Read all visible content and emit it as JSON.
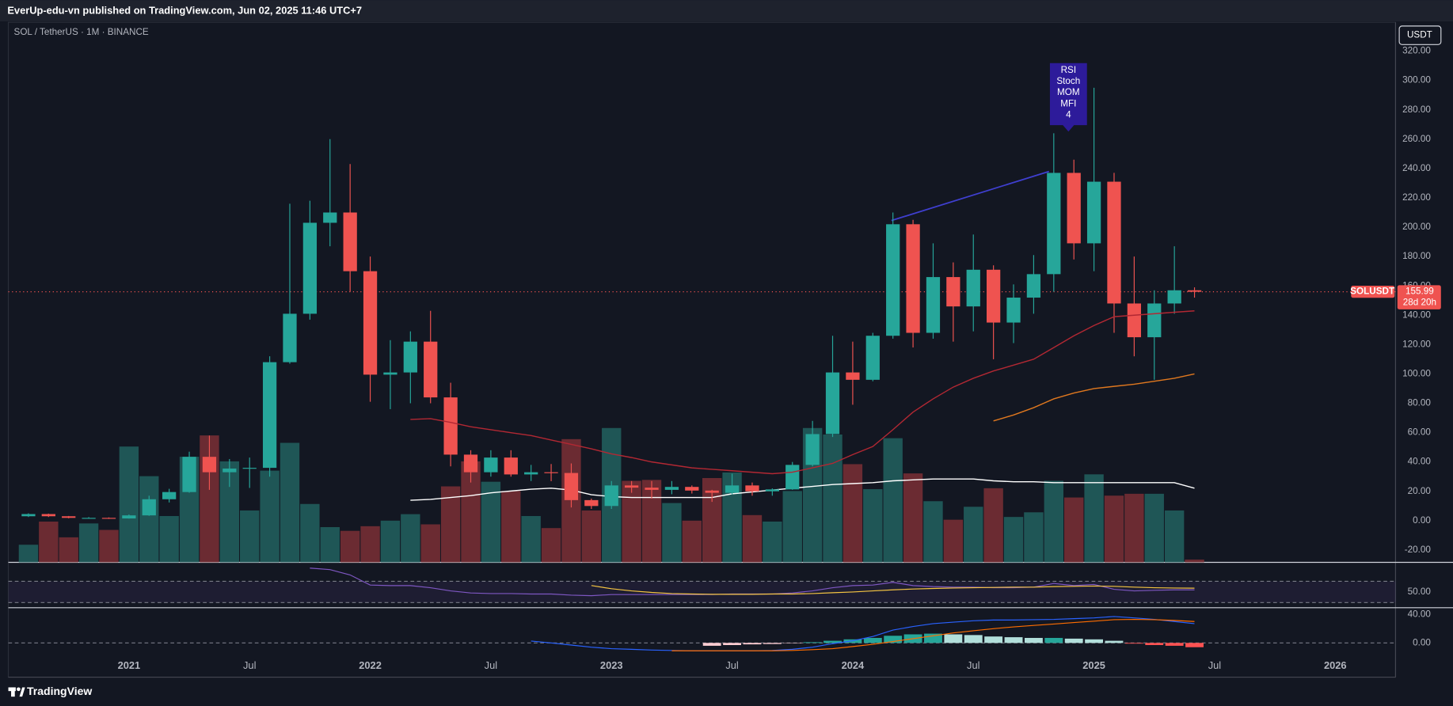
{
  "header": {
    "publisher": "EverUp-edu-vn published on TradingView.com, Jun 02, 2025 11:46 UTC+7"
  },
  "chart_data": {
    "type": "candlestick",
    "symbol": "SOL / TetherUS · 1M · BINANCE",
    "currency": "USDT",
    "x": [
      "2020-08",
      "2020-09",
      "2020-10",
      "2020-11",
      "2020-12",
      "2021-01",
      "2021-02",
      "2021-03",
      "2021-04",
      "2021-05",
      "2021-06",
      "2021-07",
      "2021-08",
      "2021-09",
      "2021-10",
      "2021-11",
      "2021-12",
      "2022-01",
      "2022-02",
      "2022-03",
      "2022-04",
      "2022-05",
      "2022-06",
      "2022-07",
      "2022-08",
      "2022-09",
      "2022-10",
      "2022-11",
      "2022-12",
      "2023-01",
      "2023-02",
      "2023-03",
      "2023-04",
      "2023-05",
      "2023-06",
      "2023-07",
      "2023-08",
      "2023-09",
      "2023-10",
      "2023-11",
      "2023-12",
      "2024-01",
      "2024-02",
      "2024-03",
      "2024-04",
      "2024-05",
      "2024-06",
      "2024-07",
      "2024-08",
      "2024-09",
      "2024-10",
      "2024-11",
      "2024-12",
      "2025-01",
      "2025-02",
      "2025-03",
      "2025-04",
      "2025-05",
      "2025-06"
    ],
    "open": [
      3,
      4.5,
      3,
      1.6,
      1.9,
      1.5,
      3.6,
      14.6,
      19.5,
      43.5,
      33,
      35.5,
      36,
      108,
      141,
      203,
      210,
      170,
      99.5,
      101,
      122,
      84,
      45,
      33,
      43,
      31.5,
      33,
      32.5,
      14,
      10,
      24,
      22.5,
      21,
      23,
      20.5,
      19,
      24,
      20,
      21.3,
      38,
      59,
      101,
      96,
      126,
      202,
      128,
      166,
      146,
      171,
      135,
      152,
      168,
      237,
      189,
      231,
      148,
      125,
      148,
      157
    ],
    "high": [
      5,
      4.8,
      3.2,
      2.4,
      2.2,
      4.2,
      17,
      21.7,
      47,
      58,
      42,
      43,
      112,
      216,
      218,
      260,
      243,
      180,
      123,
      129,
      143,
      94,
      48,
      48,
      48,
      38,
      38.6,
      39,
      15,
      27,
      27,
      27,
      27,
      24,
      21,
      32,
      26,
      22,
      40,
      68,
      126,
      122,
      128,
      210,
      205,
      189,
      176,
      195,
      174,
      161,
      181,
      264,
      246,
      295,
      237,
      180,
      157,
      187,
      159
    ],
    "low": [
      2.5,
      2.5,
      1.6,
      1.4,
      1.2,
      1.4,
      3.3,
      12.4,
      19,
      21,
      23,
      22.3,
      30,
      107,
      137,
      187,
      156,
      81,
      76,
      80,
      80,
      37,
      26,
      30,
      30,
      27,
      26.9,
      9,
      8,
      8,
      19,
      15,
      18,
      18.5,
      12.8,
      18,
      17,
      17,
      21,
      37,
      57,
      79,
      95,
      124,
      118,
      124,
      122,
      129,
      110,
      121,
      141,
      156,
      178,
      170,
      128,
      112,
      96,
      141,
      152
    ],
    "close": [
      4.5,
      3,
      1.9,
      1.9,
      1.5,
      3.6,
      14.6,
      19.5,
      43.5,
      33,
      35.5,
      36,
      108,
      141,
      203,
      210,
      170,
      99.5,
      101,
      122,
      84,
      45,
      33,
      43,
      31.5,
      33,
      32.5,
      14,
      10,
      24,
      22.5,
      21,
      23,
      20.5,
      19,
      24,
      20,
      21.3,
      38,
      59,
      101,
      96,
      126,
      202,
      128,
      166,
      146,
      171,
      135,
      152,
      168,
      237,
      189,
      231,
      148,
      125,
      148,
      157,
      155.99
    ],
    "up_color": "#26a69a",
    "down_color": "#ef5350",
    "ylim": [
      -28.4,
      339.6
    ],
    "yticks": [
      {
        "value": -20,
        "label": "-20.00"
      },
      {
        "value": 0,
        "label": "0.00"
      },
      {
        "value": 20,
        "label": "20.00"
      },
      {
        "value": 40,
        "label": "40.00"
      },
      {
        "value": 60,
        "label": "60.00"
      },
      {
        "value": 80,
        "label": "80.00"
      },
      {
        "value": 100,
        "label": "100.00"
      },
      {
        "value": 120,
        "label": "120.00"
      },
      {
        "value": 140,
        "label": "140.00"
      },
      {
        "value": 160,
        "label": "160.00"
      },
      {
        "value": 180,
        "label": "180.00"
      },
      {
        "value": 200,
        "label": "200.00"
      },
      {
        "value": 220,
        "label": "220.00"
      },
      {
        "value": 240,
        "label": "240.00"
      },
      {
        "value": 260,
        "label": "260.00"
      },
      {
        "value": 280,
        "label": "280.00"
      },
      {
        "value": 300,
        "label": "300.00"
      },
      {
        "value": 320,
        "label": "320.00"
      }
    ],
    "xlim": [
      "2020-07",
      "2026-04"
    ],
    "xticks": [
      {
        "value": "2021-01",
        "label": "2021"
      },
      {
        "value": "2021-07",
        "label": "Jul"
      },
      {
        "value": "2022-01",
        "label": "2022"
      },
      {
        "value": "2022-07",
        "label": "Jul"
      },
      {
        "value": "2023-01",
        "label": "2023"
      },
      {
        "value": "2023-07",
        "label": "Jul"
      },
      {
        "value": "2024-01",
        "label": "2024"
      },
      {
        "value": "2024-07",
        "label": "Jul"
      },
      {
        "value": "2025-01",
        "label": "2025"
      },
      {
        "value": "2025-07",
        "label": "Jul"
      },
      {
        "value": "2026-01",
        "label": "2026"
      }
    ],
    "last_price": {
      "name": "SOLUSDT",
      "value": 155.99,
      "countdown": "28d 20h"
    },
    "annotation": [
      "RSI",
      "Stoch",
      "MOM",
      "MFI",
      "4"
    ],
    "moving_averages": [
      {
        "color": "#b22833",
        "values": [
          null,
          null,
          null,
          null,
          null,
          null,
          null,
          null,
          null,
          null,
          null,
          null,
          null,
          null,
          null,
          null,
          null,
          null,
          null,
          69,
          69.5,
          67,
          64,
          62,
          60,
          58,
          55,
          52,
          49,
          45.5,
          43,
          40,
          38,
          36,
          35,
          34,
          33,
          32,
          33,
          36,
          39,
          45,
          50.5,
          62,
          74,
          83,
          91,
          97,
          102,
          106,
          110,
          118,
          126,
          133,
          139,
          140,
          141,
          142,
          143
        ]
      },
      {
        "color": "#e0781f",
        "values": [
          null,
          null,
          null,
          null,
          null,
          null,
          null,
          null,
          null,
          null,
          null,
          null,
          null,
          null,
          null,
          null,
          null,
          null,
          null,
          null,
          null,
          null,
          null,
          null,
          null,
          null,
          null,
          null,
          null,
          null,
          null,
          null,
          null,
          null,
          null,
          null,
          null,
          null,
          null,
          null,
          null,
          null,
          null,
          null,
          null,
          null,
          null,
          null,
          68,
          72,
          77,
          83,
          87,
          90,
          91.5,
          93,
          95,
          97,
          100
        ]
      }
    ],
    "volume": {
      "ylim": [
        0,
        150
      ],
      "up_color": "#22625f",
      "down_color": "#7b2f35",
      "values": [
        19,
        44,
        27,
        42,
        35,
        125,
        93,
        50,
        114,
        137,
        109,
        56,
        99,
        129,
        63,
        38,
        34,
        39,
        45,
        52,
        41,
        82,
        109,
        87,
        77,
        50,
        37,
        133,
        56,
        145,
        88,
        89,
        64,
        45,
        91,
        97,
        51,
        44,
        77,
        145,
        138,
        106,
        79,
        134,
        96,
        66,
        46,
        60,
        80,
        49,
        54,
        88,
        70,
        95,
        72,
        74,
        74,
        56,
        3
      ],
      "ma": {
        "color": "#ffffff",
        "values": [
          null,
          null,
          null,
          null,
          null,
          null,
          null,
          null,
          null,
          null,
          null,
          null,
          null,
          null,
          null,
          null,
          null,
          null,
          null,
          67,
          68,
          70,
          72,
          75,
          77,
          79,
          80,
          78,
          73,
          71,
          70,
          70,
          70,
          70,
          70,
          74,
          76,
          78,
          80,
          82,
          84,
          85,
          86,
          88,
          89,
          90,
          90,
          90,
          88,
          87,
          87,
          86,
          86,
          86,
          86,
          86,
          86,
          86,
          80
        ]
      }
    },
    "rsi": {
      "ylim": [
        22,
        104
      ],
      "yticks": [
        {
          "value": 50,
          "label": "50.00"
        }
      ],
      "bands": [
        30,
        70
      ],
      "band_color": "#7e57c2",
      "lines": [
        {
          "color": "#7e57c2",
          "values": [
            null,
            null,
            null,
            null,
            null,
            null,
            null,
            null,
            null,
            null,
            null,
            null,
            null,
            null,
            95,
            92,
            82,
            63,
            62,
            62,
            58,
            52,
            48,
            47,
            47,
            46,
            46,
            44,
            43,
            45,
            45,
            45,
            45,
            45,
            45,
            46,
            46,
            46,
            48,
            52,
            58,
            62,
            63,
            68,
            62,
            60,
            59,
            59,
            58,
            58,
            59,
            66,
            62,
            64,
            55,
            52,
            53,
            54,
            54
          ]
        },
        {
          "color": "#f5c542",
          "values": [
            null,
            null,
            null,
            null,
            null,
            null,
            null,
            null,
            null,
            null,
            null,
            null,
            null,
            null,
            null,
            null,
            null,
            null,
            null,
            null,
            null,
            null,
            null,
            null,
            null,
            null,
            null,
            null,
            62,
            56,
            52,
            49,
            47,
            46,
            45.5,
            45.5,
            45.5,
            46,
            46,
            47,
            48.5,
            50,
            52,
            54,
            55.5,
            56.5,
            57.5,
            58,
            58.5,
            59,
            59,
            60,
            60.5,
            61,
            60.5,
            59,
            58,
            57.5,
            57
          ]
        }
      ]
    },
    "macd": {
      "ylim": [
        -48,
        48
      ],
      "yticks": [
        {
          "value": 40,
          "label": "40.00"
        },
        {
          "value": 0,
          "label": "0.00"
        }
      ],
      "baseline": 0,
      "lines": [
        {
          "color": "#2962ff",
          "values": [
            null,
            null,
            null,
            null,
            null,
            null,
            null,
            null,
            null,
            null,
            null,
            null,
            null,
            null,
            null,
            null,
            null,
            null,
            null,
            null,
            null,
            null,
            null,
            null,
            null,
            2.6,
            0,
            -3,
            -6,
            -8,
            -9,
            -10,
            -10.5,
            -11,
            -11,
            -11,
            -11,
            -10.5,
            -9,
            -6,
            -1,
            3,
            9,
            18,
            23,
            27,
            29,
            31,
            32,
            32,
            32.5,
            33,
            34,
            35,
            37,
            35,
            33,
            30,
            27
          ]
        },
        {
          "color": "#ff6d00",
          "values": [
            null,
            null,
            null,
            null,
            null,
            null,
            null,
            null,
            null,
            null,
            null,
            null,
            null,
            null,
            null,
            null,
            null,
            null,
            null,
            null,
            null,
            null,
            null,
            null,
            null,
            null,
            null,
            null,
            null,
            null,
            null,
            null,
            -11,
            -11,
            -11,
            -11,
            -11,
            -11,
            -10.5,
            -9.5,
            -8,
            -5,
            -2,
            2,
            6,
            10,
            14,
            17,
            20,
            22.5,
            24.5,
            26.5,
            28.5,
            30.5,
            32.5,
            33,
            32.5,
            31.5,
            30
          ]
        }
      ],
      "histogram": {
        "colors": {
          "pos_rising": "#26a69a",
          "pos_falling": "#b2dfdb",
          "neg_falling": "#ff5252",
          "neg_rising": "#ffcdd2"
        },
        "values": [
          null,
          null,
          null,
          null,
          null,
          null,
          null,
          null,
          null,
          null,
          null,
          null,
          null,
          null,
          null,
          null,
          null,
          null,
          null,
          null,
          null,
          null,
          null,
          null,
          null,
          null,
          null,
          null,
          null,
          null,
          null,
          null,
          null,
          null,
          -4,
          -3,
          -2,
          -1.5,
          -0.5,
          1,
          3,
          5,
          7,
          10,
          12,
          13,
          12,
          11,
          9,
          8,
          7,
          7,
          6,
          5,
          3,
          -1,
          -3,
          -4,
          -6
        ]
      }
    }
  },
  "footer": {
    "brand": "TradingView"
  }
}
